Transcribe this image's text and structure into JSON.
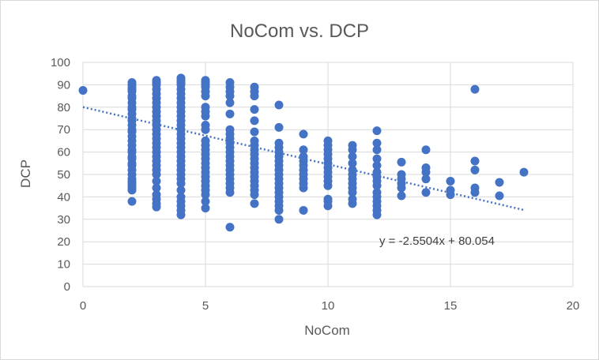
{
  "chart_data": {
    "type": "scatter",
    "title": "NoCom vs. DCP",
    "xlabel": "NoCom",
    "ylabel": "DCP",
    "xlim": [
      0,
      20
    ],
    "ylim": [
      0,
      100
    ],
    "x_ticks": [
      0,
      5,
      10,
      15,
      20
    ],
    "y_ticks": [
      0,
      10,
      20,
      30,
      40,
      50,
      60,
      70,
      80,
      90,
      100
    ],
    "grid": true,
    "marker_color": "#4472C4",
    "trendline": {
      "type": "linear",
      "slope": -2.5504,
      "intercept": 80.054,
      "x_range": [
        0,
        18
      ],
      "style": "dotted",
      "equation_label": "y = -2.5504x + 80.054"
    },
    "points": [
      [
        0,
        87.5
      ],
      [
        2,
        38
      ],
      [
        2,
        43
      ],
      [
        2,
        44
      ],
      [
        2,
        45
      ],
      [
        2,
        46
      ],
      [
        2,
        47
      ],
      [
        2,
        48
      ],
      [
        2,
        50
      ],
      [
        2,
        52
      ],
      [
        2,
        54
      ],
      [
        2,
        55
      ],
      [
        2,
        57
      ],
      [
        2,
        58
      ],
      [
        2,
        60
      ],
      [
        2,
        61
      ],
      [
        2,
        63
      ],
      [
        2,
        65
      ],
      [
        2,
        67
      ],
      [
        2,
        69
      ],
      [
        2,
        70
      ],
      [
        2,
        72
      ],
      [
        2,
        74
      ],
      [
        2,
        75
      ],
      [
        2,
        77
      ],
      [
        2,
        79
      ],
      [
        2,
        80
      ],
      [
        2,
        82
      ],
      [
        2,
        84
      ],
      [
        2,
        85
      ],
      [
        2,
        87
      ],
      [
        2,
        88
      ],
      [
        2,
        89
      ],
      [
        2,
        90
      ],
      [
        2,
        91
      ],
      [
        3,
        35.5
      ],
      [
        3,
        37
      ],
      [
        3,
        39
      ],
      [
        3,
        41
      ],
      [
        3,
        44
      ],
      [
        3,
        47
      ],
      [
        3,
        50
      ],
      [
        3,
        52
      ],
      [
        3,
        54
      ],
      [
        3,
        56
      ],
      [
        3,
        58
      ],
      [
        3,
        60
      ],
      [
        3,
        62
      ],
      [
        3,
        64
      ],
      [
        3,
        66
      ],
      [
        3,
        68
      ],
      [
        3,
        70
      ],
      [
        3,
        72
      ],
      [
        3,
        74
      ],
      [
        3,
        76
      ],
      [
        3,
        78
      ],
      [
        3,
        80
      ],
      [
        3,
        82
      ],
      [
        3,
        84
      ],
      [
        3,
        86
      ],
      [
        3,
        88
      ],
      [
        3,
        90
      ],
      [
        3,
        91
      ],
      [
        3,
        92
      ],
      [
        4,
        32
      ],
      [
        4,
        34
      ],
      [
        4,
        36
      ],
      [
        4,
        38
      ],
      [
        4,
        40
      ],
      [
        4,
        43
      ],
      [
        4,
        46
      ],
      [
        4,
        48
      ],
      [
        4,
        50
      ],
      [
        4,
        52
      ],
      [
        4,
        54
      ],
      [
        4,
        56
      ],
      [
        4,
        58
      ],
      [
        4,
        60
      ],
      [
        4,
        62
      ],
      [
        4,
        64
      ],
      [
        4,
        66
      ],
      [
        4,
        68
      ],
      [
        4,
        70
      ],
      [
        4,
        72
      ],
      [
        4,
        74
      ],
      [
        4,
        76
      ],
      [
        4,
        78
      ],
      [
        4,
        80
      ],
      [
        4,
        82
      ],
      [
        4,
        84
      ],
      [
        4,
        86
      ],
      [
        4,
        88
      ],
      [
        4,
        90
      ],
      [
        4,
        91
      ],
      [
        4,
        92
      ],
      [
        4,
        93
      ],
      [
        5,
        35
      ],
      [
        5,
        38
      ],
      [
        5,
        41
      ],
      [
        5,
        43
      ],
      [
        5,
        45
      ],
      [
        5,
        47
      ],
      [
        5,
        49
      ],
      [
        5,
        51
      ],
      [
        5,
        53
      ],
      [
        5,
        55
      ],
      [
        5,
        57
      ],
      [
        5,
        59
      ],
      [
        5,
        61
      ],
      [
        5,
        63
      ],
      [
        5,
        65
      ],
      [
        5,
        70
      ],
      [
        5,
        72
      ],
      [
        5,
        76
      ],
      [
        5,
        78
      ],
      [
        5,
        80
      ],
      [
        5,
        85
      ],
      [
        5,
        87
      ],
      [
        5,
        89
      ],
      [
        5,
        90
      ],
      [
        5,
        91
      ],
      [
        5,
        92
      ],
      [
        6,
        26.5
      ],
      [
        6,
        42
      ],
      [
        6,
        44
      ],
      [
        6,
        46
      ],
      [
        6,
        48
      ],
      [
        6,
        50
      ],
      [
        6,
        52
      ],
      [
        6,
        54
      ],
      [
        6,
        56
      ],
      [
        6,
        58
      ],
      [
        6,
        60
      ],
      [
        6,
        62
      ],
      [
        6,
        64
      ],
      [
        6,
        66
      ],
      [
        6,
        68
      ],
      [
        6,
        70
      ],
      [
        6,
        77
      ],
      [
        6,
        82
      ],
      [
        6,
        85
      ],
      [
        6,
        87
      ],
      [
        6,
        89
      ],
      [
        6,
        91
      ],
      [
        7,
        37
      ],
      [
        7,
        41
      ],
      [
        7,
        43
      ],
      [
        7,
        45
      ],
      [
        7,
        47
      ],
      [
        7,
        49
      ],
      [
        7,
        51
      ],
      [
        7,
        53
      ],
      [
        7,
        55
      ],
      [
        7,
        57
      ],
      [
        7,
        59
      ],
      [
        7,
        61
      ],
      [
        7,
        63
      ],
      [
        7,
        65
      ],
      [
        7,
        69
      ],
      [
        7,
        74
      ],
      [
        7,
        79
      ],
      [
        7,
        85
      ],
      [
        7,
        87
      ],
      [
        7,
        89
      ],
      [
        8,
        30
      ],
      [
        8,
        34
      ],
      [
        8,
        36
      ],
      [
        8,
        38
      ],
      [
        8,
        40
      ],
      [
        8,
        42
      ],
      [
        8,
        44
      ],
      [
        8,
        46
      ],
      [
        8,
        48
      ],
      [
        8,
        50
      ],
      [
        8,
        52
      ],
      [
        8,
        54
      ],
      [
        8,
        56
      ],
      [
        8,
        58
      ],
      [
        8,
        60
      ],
      [
        8,
        62
      ],
      [
        8,
        64
      ],
      [
        8,
        71
      ],
      [
        8,
        81
      ],
      [
        9,
        34
      ],
      [
        9,
        44
      ],
      [
        9,
        46
      ],
      [
        9,
        48
      ],
      [
        9,
        50
      ],
      [
        9,
        52
      ],
      [
        9,
        54
      ],
      [
        9,
        56
      ],
      [
        9,
        58
      ],
      [
        9,
        61
      ],
      [
        9,
        68
      ],
      [
        10,
        36
      ],
      [
        10,
        38
      ],
      [
        10,
        39
      ],
      [
        10,
        45
      ],
      [
        10,
        47
      ],
      [
        10,
        49
      ],
      [
        10,
        51
      ],
      [
        10,
        53
      ],
      [
        10,
        55
      ],
      [
        10,
        57
      ],
      [
        10,
        59
      ],
      [
        10,
        61
      ],
      [
        10,
        63
      ],
      [
        10,
        65
      ],
      [
        11,
        37
      ],
      [
        11,
        39
      ],
      [
        11,
        42
      ],
      [
        11,
        44
      ],
      [
        11,
        46
      ],
      [
        11,
        48
      ],
      [
        11,
        50
      ],
      [
        11,
        52
      ],
      [
        11,
        55
      ],
      [
        11,
        58
      ],
      [
        11,
        61
      ],
      [
        11,
        63
      ],
      [
        12,
        32
      ],
      [
        12,
        34
      ],
      [
        12,
        36
      ],
      [
        12,
        38
      ],
      [
        12,
        40
      ],
      [
        12,
        42
      ],
      [
        12,
        45
      ],
      [
        12,
        47
      ],
      [
        12,
        49
      ],
      [
        12,
        51
      ],
      [
        12,
        54
      ],
      [
        12,
        57
      ],
      [
        12,
        61
      ],
      [
        12,
        64
      ],
      [
        12,
        69.5
      ],
      [
        13,
        40.5
      ],
      [
        13,
        44
      ],
      [
        13,
        46
      ],
      [
        13,
        48
      ],
      [
        13,
        50
      ],
      [
        13,
        55.5
      ],
      [
        14,
        42
      ],
      [
        14,
        48
      ],
      [
        14,
        51
      ],
      [
        14,
        53
      ],
      [
        14,
        61
      ],
      [
        15,
        41
      ],
      [
        15,
        43
      ],
      [
        15,
        47
      ],
      [
        16,
        42
      ],
      [
        16,
        44
      ],
      [
        16,
        52
      ],
      [
        16,
        56
      ],
      [
        16,
        88
      ],
      [
        17,
        40.5
      ],
      [
        17,
        46.5
      ],
      [
        18,
        51
      ]
    ]
  }
}
